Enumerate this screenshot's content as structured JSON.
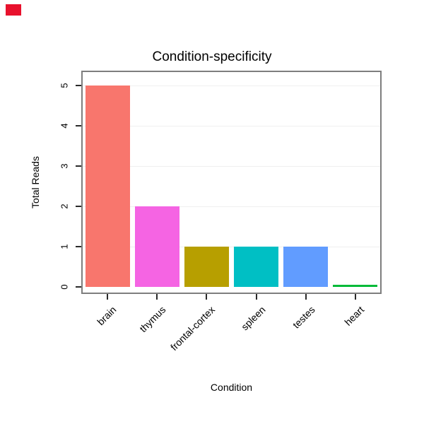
{
  "marker_color": "#e8112d",
  "chart_data": {
    "type": "bar",
    "title": "Condition-specificity",
    "xlabel": "Condition",
    "ylabel": "Total Reads",
    "categories": [
      "brain",
      "thymus",
      "frontal-cortex",
      "spleen",
      "testes",
      "heart"
    ],
    "values": [
      5,
      2,
      1,
      1,
      1,
      0.02
    ],
    "colors": [
      "#F8766D",
      "#F564E3",
      "#B79F00",
      "#00BFC4",
      "#619CFF",
      "#00BA38"
    ],
    "ylim": [
      0,
      5
    ],
    "yticks": [
      0,
      1,
      2,
      3,
      4,
      5
    ],
    "grid": "faint horizontal gridlines at integer values",
    "legend": "none"
  }
}
